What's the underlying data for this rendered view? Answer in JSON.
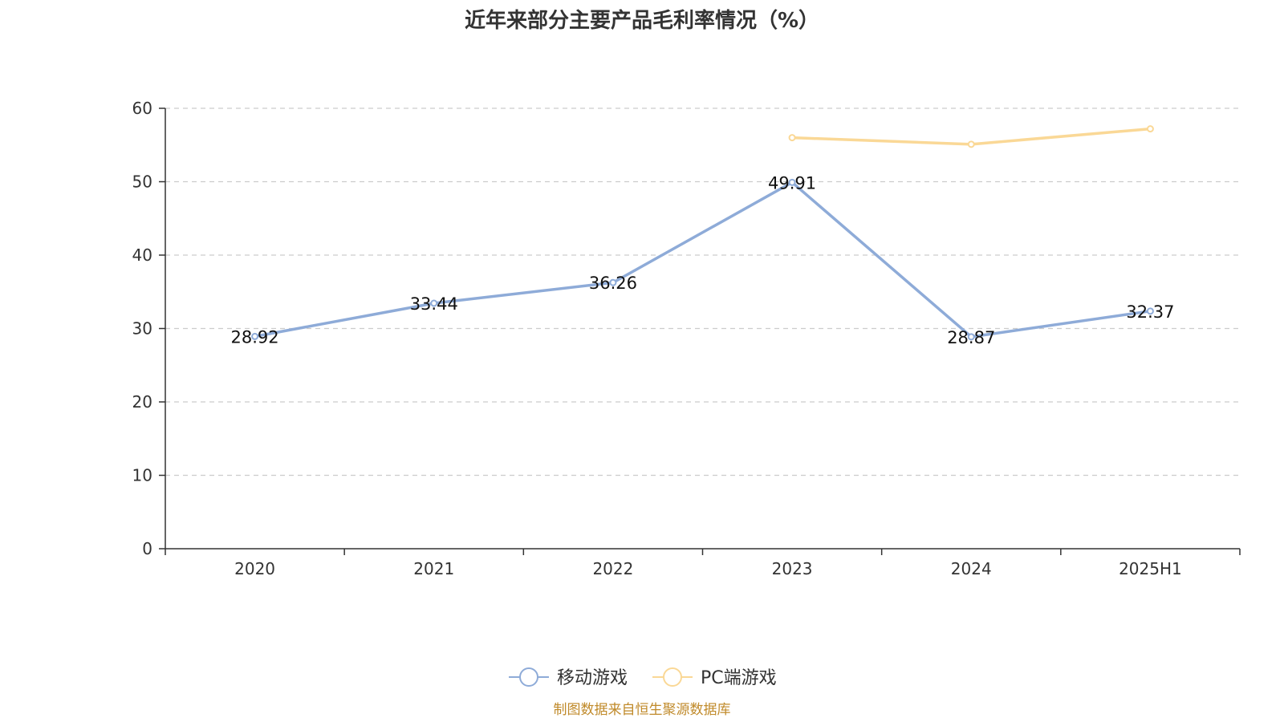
{
  "chart_data": {
    "type": "line",
    "title": "近年来部分主要产品毛利率情况（%）",
    "xlabel": "",
    "ylabel": "",
    "categories": [
      "2020",
      "2021",
      "2022",
      "2023",
      "2024",
      "2025H1"
    ],
    "ylim": [
      0,
      60
    ],
    "yticks": [
      0,
      10,
      20,
      30,
      40,
      50,
      60
    ],
    "grid": true,
    "legend_position": "bottom",
    "series": [
      {
        "name": "移动游戏",
        "color": "#8eabd8",
        "values": [
          28.92,
          33.44,
          36.26,
          49.91,
          28.87,
          32.37
        ],
        "labels": [
          "28.92",
          "33.44",
          "36.26",
          "49.91",
          "28.87",
          "32.37"
        ],
        "show_labels": true
      },
      {
        "name": "PC端游戏",
        "color": "#fad896",
        "values": [
          null,
          null,
          null,
          56.0,
          55.1,
          57.2
        ],
        "show_labels": false
      }
    ]
  },
  "source": "制图数据来自恒生聚源数据库"
}
